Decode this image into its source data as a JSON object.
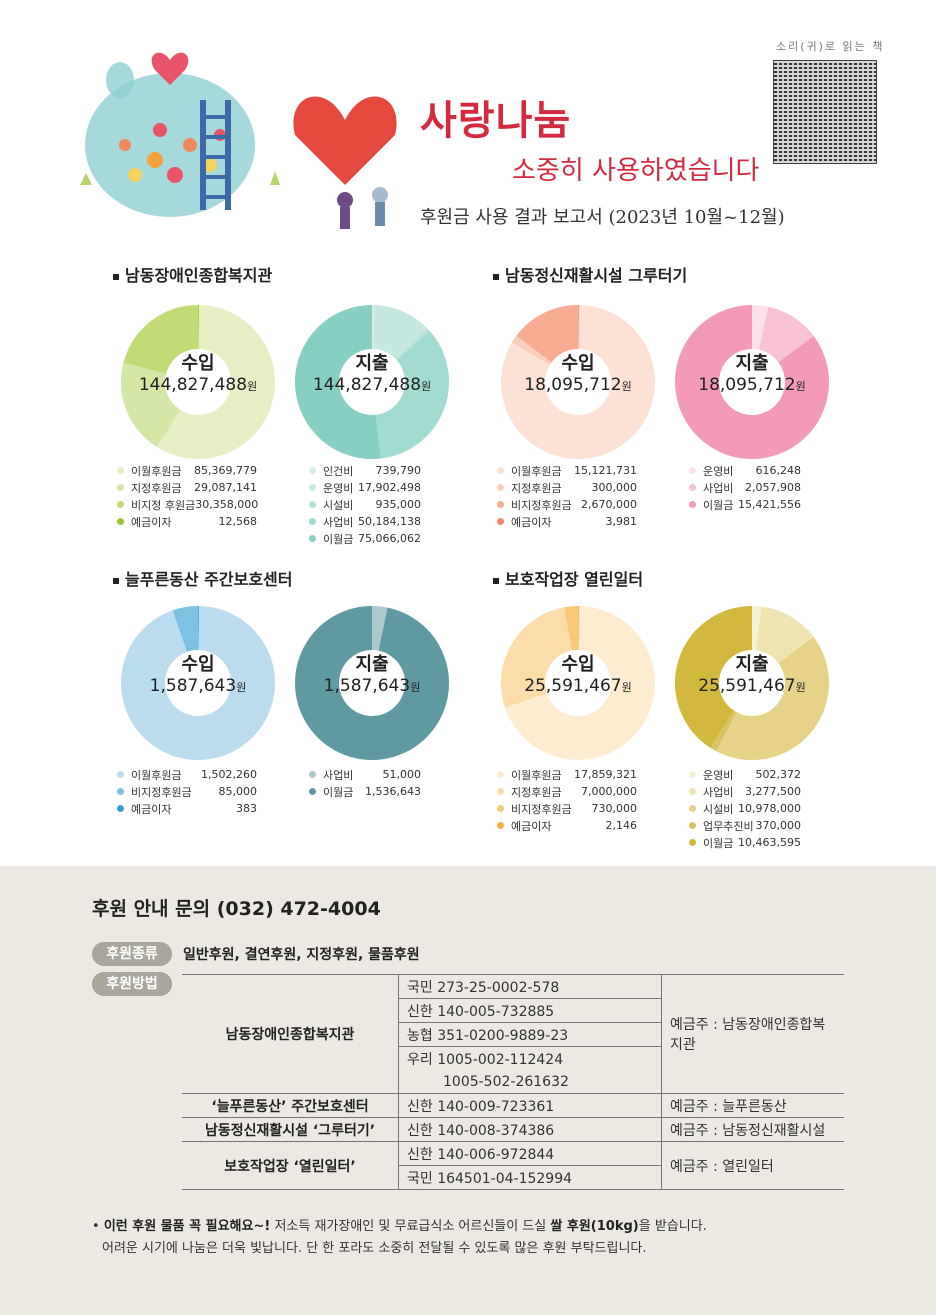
{
  "header": {
    "title": "사랑나눔",
    "subtitle": "소중히 사용하였습니다",
    "report": "후원금 사용 결과 보고서 (2023년 10월~12월)",
    "qr_label": "소리(귀)로 읽는 책"
  },
  "sections": [
    {
      "name": "남동장애인종합복지관",
      "income": {
        "label": "수입",
        "total": "144,827,488",
        "unit": "원",
        "items": [
          {
            "label": "이월후원금",
            "value": "85,369,779",
            "amount": 85369779,
            "color": "#e6efc4"
          },
          {
            "label": "지정후원금",
            "value": "29,087,141",
            "amount": 29087141,
            "color": "#d5e7a7"
          },
          {
            "label": "비지정 후원금",
            "value": "30,358,000",
            "amount": 30358000,
            "color": "#c1db76"
          },
          {
            "label": "예금이자",
            "value": "12,568",
            "amount": 12568,
            "color": "#9ec72e"
          }
        ]
      },
      "expense": {
        "label": "지출",
        "total": "144,827,488",
        "unit": "원",
        "items": [
          {
            "label": "인건비",
            "value": "739,790",
            "amount": 739790,
            "color": "#d7eee9"
          },
          {
            "label": "운영비",
            "value": "17,902,498",
            "amount": 17902498,
            "color": "#c6e8e1"
          },
          {
            "label": "시설비",
            "value": "935,000",
            "amount": 935000,
            "color": "#b6e1d8"
          },
          {
            "label": "사업비",
            "value": "50,184,138",
            "amount": 50184138,
            "color": "#a2dbd0"
          },
          {
            "label": "이월금",
            "value": "75,066,062",
            "amount": 75066062,
            "color": "#86cfc2"
          }
        ]
      }
    },
    {
      "name": "남동정신재활시설 그루터기",
      "income": {
        "label": "수입",
        "total": "18,095,712",
        "unit": "원",
        "items": [
          {
            "label": "이월후원금",
            "value": "15,121,731",
            "amount": 15121731,
            "color": "#fde1d5"
          },
          {
            "label": "지정후원금",
            "value": "300,000",
            "amount": 300000,
            "color": "#fbcdbb"
          },
          {
            "label": "비지정후원금",
            "value": "2,670,000",
            "amount": 2670000,
            "color": "#f7ab91"
          },
          {
            "label": "예금이자",
            "value": "3,981",
            "amount": 3981,
            "color": "#ef8a6a"
          }
        ]
      },
      "expense": {
        "label": "지출",
        "total": "18,095,712",
        "unit": "원",
        "items": [
          {
            "label": "운영비",
            "value": "616,248",
            "amount": 616248,
            "color": "#fde0e8"
          },
          {
            "label": "사업비",
            "value": "2,057,908",
            "amount": 2057908,
            "color": "#f8c3d3"
          },
          {
            "label": "이월금",
            "value": "15,421,556",
            "amount": 15421556,
            "color": "#f29ab7"
          }
        ]
      }
    },
    {
      "name": "늘푸른동산 주간보호센터",
      "income": {
        "label": "수입",
        "total": "1,587,643",
        "unit": "원",
        "items": [
          {
            "label": "이월후원금",
            "value": "1,502,260",
            "amount": 1502260,
            "color": "#bcdcef"
          },
          {
            "label": "비지정후원금",
            "value": "85,000",
            "amount": 85000,
            "color": "#7fc1e2"
          },
          {
            "label": "예금이자",
            "value": "383",
            "amount": 383,
            "color": "#2fa1d8"
          }
        ]
      },
      "expense": {
        "label": "지출",
        "total": "1,587,643",
        "unit": "원",
        "items": [
          {
            "label": "사업비",
            "value": "51,000",
            "amount": 51000,
            "color": "#aac9cd"
          },
          {
            "label": "이월금",
            "value": "1,536,643",
            "amount": 1536643,
            "color": "#5f9aa3"
          }
        ]
      }
    },
    {
      "name": "보호작업장 열린일터",
      "income": {
        "label": "수입",
        "total": "25,591,467",
        "unit": "원",
        "items": [
          {
            "label": "이월후원금",
            "value": "17,859,321",
            "amount": 17859321,
            "color": "#fdecd0"
          },
          {
            "label": "지정후원금",
            "value": "7,000,000",
            "amount": 7000000,
            "color": "#fcdca8"
          },
          {
            "label": "비지정후원금",
            "value": "730,000",
            "amount": 730000,
            "color": "#f9c97a"
          },
          {
            "label": "예금이자",
            "value": "2,146",
            "amount": 2146,
            "color": "#f4b041"
          }
        ]
      },
      "expense": {
        "label": "지출",
        "total": "25,591,467",
        "unit": "원",
        "items": [
          {
            "label": "운영비",
            "value": "502,372",
            "amount": 502372,
            "color": "#f6f0d5"
          },
          {
            "label": "사업비",
            "value": "3,277,500",
            "amount": 3277500,
            "color": "#efe3b2"
          },
          {
            "label": "시설비",
            "value": "10,978,000",
            "amount": 10978000,
            "color": "#e7d28a"
          },
          {
            "label": "업무추진비",
            "value": "370,000",
            "amount": 370000,
            "color": "#dac363"
          },
          {
            "label": "이월금",
            "value": "10,463,595",
            "amount": 10463595,
            "color": "#d2b83c"
          }
        ]
      }
    }
  ],
  "donation": {
    "contact": "후원 안내 문의 (032) 472-4004",
    "types_label": "후원종류",
    "types": "일반후원, 결연후원, 지정후원, 물품후원",
    "method_label": "후원방법",
    "rows": [
      {
        "org": "남동장애인종합복지관",
        "accounts": [
          "국민 273-25-0002-578",
          "신한 140-005-732885",
          "농협 351-0200-9889-23",
          "우리 1005-002-112424",
          "1005-502-261632"
        ],
        "holder": "예금주 : 남동장애인종합복지관"
      },
      {
        "org": "‘늘푸른동산’ 주간보호센터",
        "accounts": [
          "신한 140-009-723361"
        ],
        "holder": "예금주 : 늘푸른동산"
      },
      {
        "org": "남동정신재활시설 ‘그루터기’",
        "accounts": [
          "신한 140-008-374386"
        ],
        "holder": "예금주 : 남동정신재활시설"
      },
      {
        "org": "보호작업장 ‘열린일터’",
        "accounts": [
          "신한 140-006-972844",
          "국민 164501-04-152994"
        ],
        "holder": "예금주 : 열린일터"
      }
    ],
    "note_bold1": "이런 후원 물품 꼭 필요해요~!",
    "note_text1": " 저소득 재가장애인 및 무료급식소 어르신들이 드실 ",
    "note_bold2": "쌀 후원(10kg)",
    "note_text2": "을 받습니다.",
    "note_line2": "어려운 시기에 나눔은 더욱 빛납니다. 단 한 포라도 소중히 전달될 수 있도록 많은 후원 부탁드립니다."
  }
}
